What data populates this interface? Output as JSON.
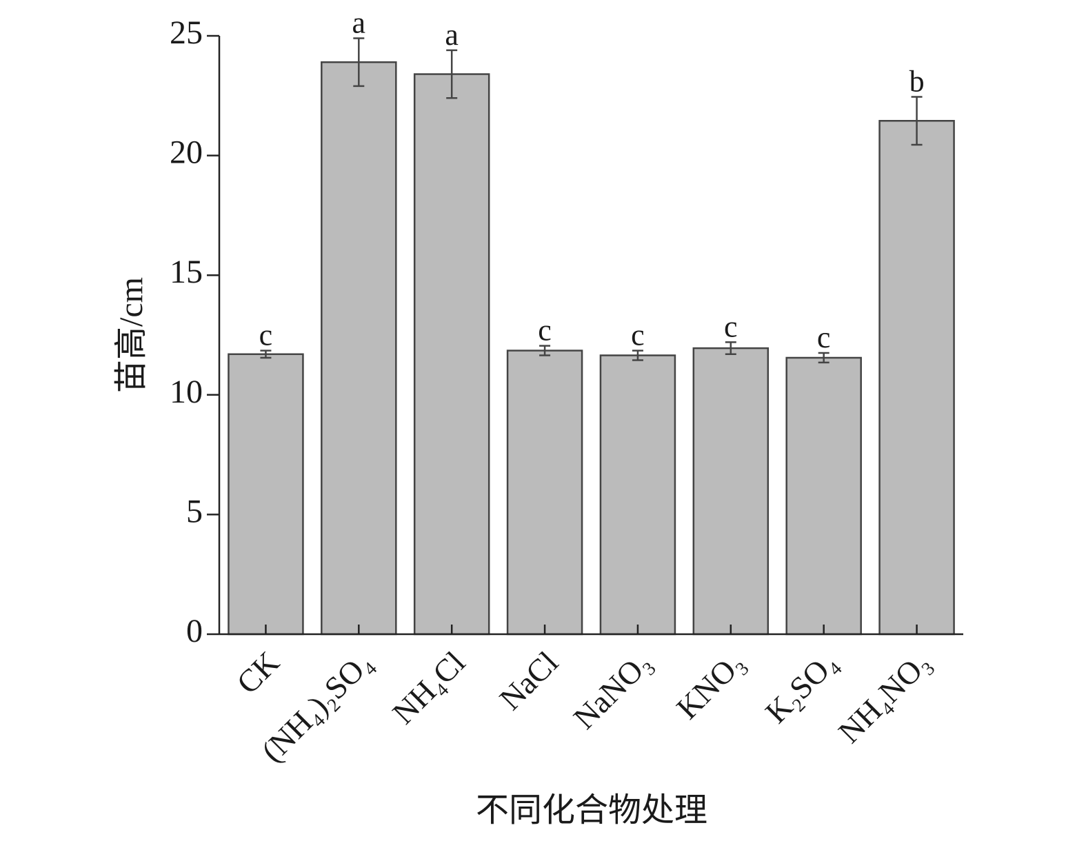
{
  "chart_data": {
    "type": "bar",
    "x_label": "不同化合物处理",
    "y_label": "苗高/cm",
    "categories": [
      "CK",
      "(NH₄)₂SO₄",
      "NH₄Cl",
      "NaCl",
      "NaNO₃",
      "KNO₃",
      "K₂SO₄",
      "NH₄NO₃"
    ],
    "values": [
      11.7,
      23.9,
      23.4,
      11.85,
      11.65,
      11.95,
      11.55,
      21.45
    ],
    "errors": [
      0.15,
      1.0,
      1.0,
      0.2,
      0.2,
      0.25,
      0.2,
      1.0
    ],
    "letters": [
      "c",
      "a",
      "a",
      "c",
      "c",
      "c",
      "c",
      "b"
    ],
    "color": "#bbbbbb",
    "ylim": [
      0,
      25
    ],
    "yticks": [
      0,
      5,
      10,
      15,
      20,
      25
    ]
  }
}
